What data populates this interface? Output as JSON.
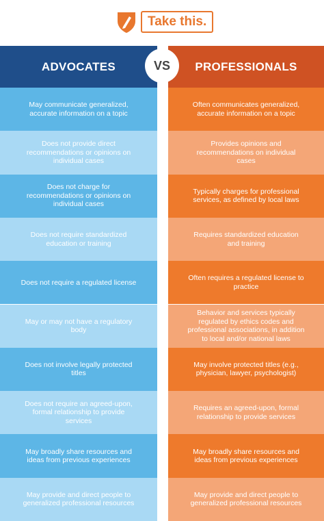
{
  "header": {
    "logo_text": "Take this."
  },
  "columns": {
    "left_title": "ADVOCATES",
    "vs": "VS",
    "right_title": "PROFESSIONALS"
  },
  "rows": [
    [
      "May communicate generalized, accurate information on a topic",
      "Often communicates generalized, accurate information on a topic"
    ],
    [
      "Does not provide direct recommendations or opinions on individual cases",
      "Provides opinions and recommendations on individual cases"
    ],
    [
      "Does not charge for recommendations or opinions on individual cases",
      "Typically charges for professional services, as defined by local laws"
    ],
    [
      "Does not require standardized education or training",
      "Requires standardized education and training"
    ],
    [
      "Does not require a regulated license",
      "Often requires a regulated license to practice"
    ],
    [
      "May or may not have a regulatory body",
      "Behavior and services typically regulated by ethics codes and professional associations, in addition to local and/or national laws"
    ],
    [
      "Does not involve legally protected titles",
      "May involve protected titles (e.g., physician, lawyer, psychologist)"
    ],
    [
      "Does not require an agreed-upon, formal relationship to provide services",
      "Requires an agreed-upon, formal relationship to provide services"
    ],
    [
      "May broadly share resources and ideas from previous  experiences",
      "May broadly share resources and ideas from previous experiences"
    ],
    [
      "May provide and direct people to generalized professional resources",
      "May provide and direct people to generalized professional resources"
    ]
  ]
}
